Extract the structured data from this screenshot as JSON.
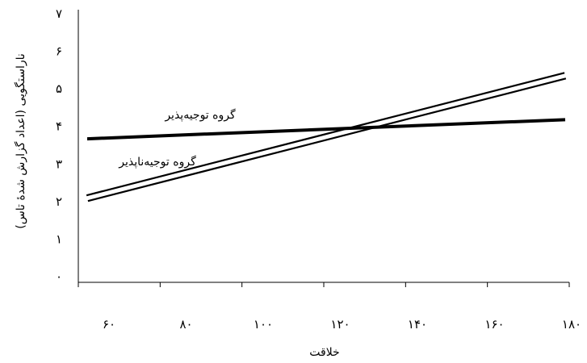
{
  "chart_data": {
    "type": "line",
    "title": "",
    "xlabel": "خلاقت",
    "ylabel": "ناراستگویی (اعداد گزارش شدۀ تاس)",
    "x_ticks": [
      "۶۰",
      "۸۰",
      "۱۰۰",
      "۱۲۰",
      "۱۴۰",
      "۱۶۰",
      "۱۸۰"
    ],
    "y_ticks": [
      "۰",
      "۱",
      "۲",
      "۳",
      "۴",
      "۵",
      "۶",
      "۷"
    ],
    "xlim": [
      60,
      180
    ],
    "ylim": [
      0,
      7
    ],
    "grid": false,
    "legend": "none",
    "series": [
      {
        "name": "گروه توجیه‌پذیر",
        "x": [
          60,
          180
        ],
        "values": [
          3.67,
          4.18
        ],
        "style": "thick",
        "color": "#000000"
      },
      {
        "name": "گروه توجیه‌ناپذیر",
        "x": [
          60,
          180
        ],
        "values": [
          2.09,
          5.35
        ],
        "style": "double",
        "color": "#000000"
      }
    ]
  }
}
